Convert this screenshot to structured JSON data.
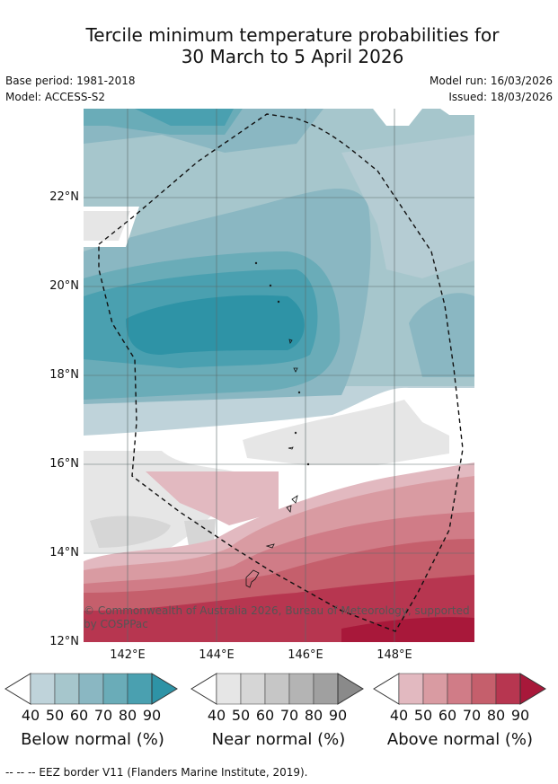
{
  "title_line1": "Tercile minimum temperature probabilities for",
  "title_line2": "30 March to 5 April 2026",
  "meta": {
    "base_period": "Base period: 1981-2018",
    "model": "Model: ACCESS-S2",
    "model_run": "Model run: 16/03/2026",
    "issued": "Issued: 18/03/2026"
  },
  "map": {
    "lat_labels": [
      "22°N",
      "20°N",
      "18°N",
      "16°N",
      "14°N",
      "12°N"
    ],
    "lon_labels": [
      "142°E",
      "144°E",
      "146°E",
      "148°E"
    ],
    "copyright_line1": "© Commonwealth of Australia 2026, Bureau of Meteorology, supported",
    "copyright_line2": "by COSPPac"
  },
  "legends": [
    {
      "label": "Below normal (%)",
      "ticks": [
        "40",
        "50",
        "60",
        "70",
        "80",
        "90"
      ],
      "colors": [
        "#bfd3da",
        "#a6c6cc",
        "#8ab7c2",
        "#6aacb8",
        "#4aa0b0",
        "#2e93a6"
      ]
    },
    {
      "label": "Near normal (%)",
      "ticks": [
        "40",
        "50",
        "60",
        "70",
        "80",
        "90"
      ],
      "colors": [
        "#e6e6e6",
        "#d6d6d6",
        "#c6c6c6",
        "#b4b4b4",
        "#a0a0a0",
        "#8a8a8a"
      ]
    },
    {
      "label": "Above normal (%)",
      "ticks": [
        "40",
        "50",
        "60",
        "70",
        "80",
        "90"
      ],
      "colors": [
        "#e2b9c0",
        "#d99ba2",
        "#d07c87",
        "#c55f6c",
        "#b73650",
        "#a8183a"
      ]
    }
  ],
  "footer": "-- -- -- EEZ border V11 (Flanders Marine Institute, 2019)."
}
